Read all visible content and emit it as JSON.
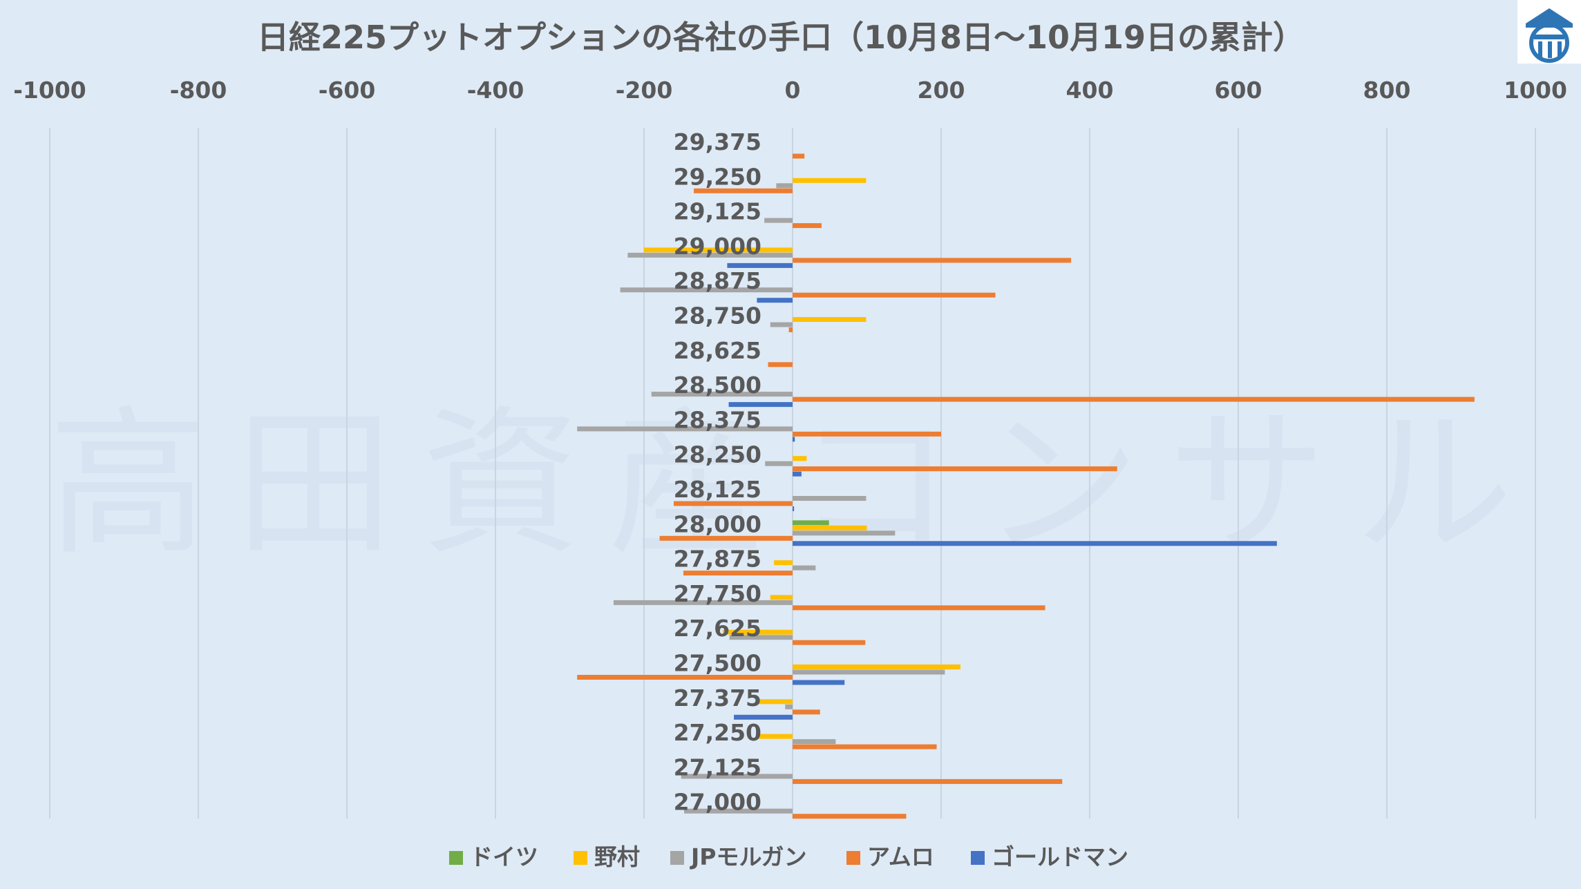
{
  "chart_data": {
    "type": "bar",
    "orientation": "horizontal",
    "title": "日経225プットオプションの各社の手口（10月8日～10月19日の累計）",
    "watermark": "高田資産コンサル",
    "xlim": [
      -1000,
      1000
    ],
    "xticks": [
      -1000,
      -800,
      -600,
      -400,
      -200,
      0,
      200,
      400,
      600,
      800,
      1000
    ],
    "xtick_labels": [
      "-1000",
      "-800",
      "-600",
      "-400",
      "-200",
      "0",
      "200",
      "400",
      "600",
      "800",
      "1000"
    ],
    "grid": true,
    "legend_position": "bottom",
    "categories": [
      "29,375",
      "29,250",
      "29,125",
      "29,000",
      "28,875",
      "28,750",
      "28,625",
      "28,500",
      "28,375",
      "28,250",
      "28,125",
      "28,000",
      "27,875",
      "27,750",
      "27,625",
      "27,500",
      "27,375",
      "27,250",
      "27,125",
      "27,000"
    ],
    "series": [
      {
        "name": "ドイツ",
        "color": "#70ad47",
        "values": [
          0,
          0,
          0,
          0,
          0,
          0,
          0,
          0,
          0,
          0,
          0,
          49,
          0,
          0,
          0,
          0,
          0,
          0,
          0,
          0
        ]
      },
      {
        "name": "野村",
        "color": "#ffc000",
        "values": [
          0,
          99,
          0,
          -200,
          0,
          99,
          0,
          0,
          0,
          19,
          0,
          100,
          -25,
          -30,
          -94,
          226,
          -46,
          -46,
          0,
          0
        ]
      },
      {
        "name": "JPモルガン",
        "color": "#a5a5a5",
        "values": [
          0,
          -22,
          -38,
          -222,
          -232,
          -30,
          0,
          -190,
          -290,
          -37,
          99,
          138,
          31,
          -241,
          -85,
          205,
          -10,
          58,
          -150,
          -146
        ]
      },
      {
        "name": "アムロ",
        "color": "#ed7d31",
        "values": [
          16,
          -133,
          39,
          375,
          273,
          -5,
          -33,
          918,
          200,
          437,
          -160,
          -179,
          -147,
          340,
          98,
          -290,
          37,
          194,
          363,
          153
        ]
      },
      {
        "name": "ゴールドマン",
        "color": "#4472c4",
        "values": [
          0,
          0,
          0,
          -88,
          -48,
          0,
          0,
          -86,
          3,
          12,
          2,
          652,
          0,
          0,
          0,
          70,
          -79,
          0,
          0,
          0
        ]
      }
    ]
  }
}
